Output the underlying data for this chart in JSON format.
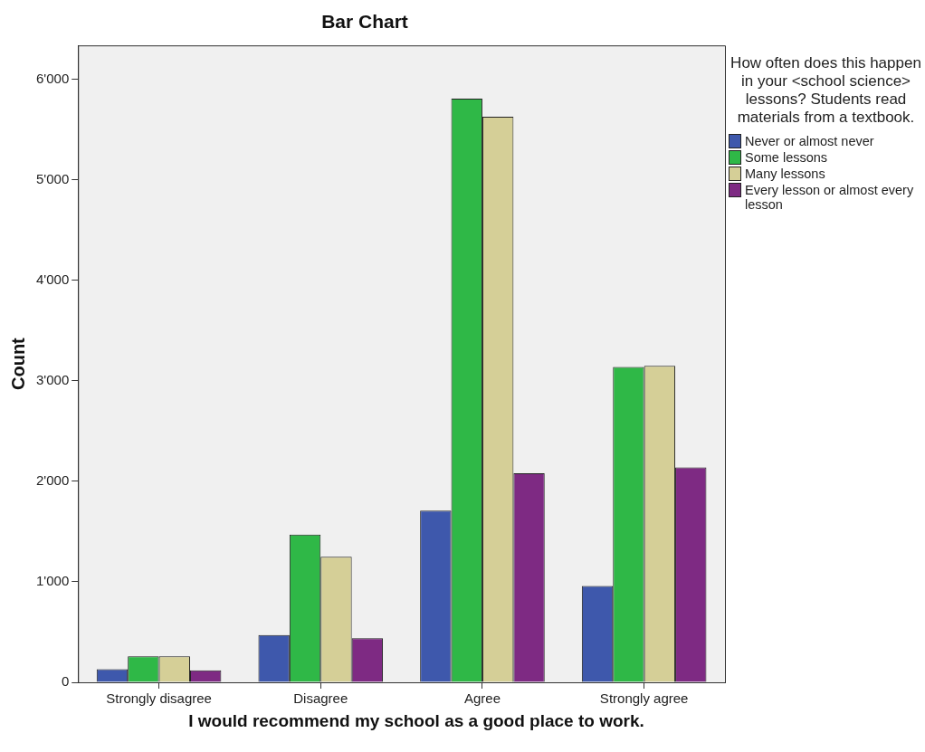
{
  "chart_data": {
    "type": "bar",
    "title": "Bar Chart",
    "xlabel": "I would recommend my school as a good place to work.",
    "ylabel": "Count",
    "legend_title": "How often does this happen in your <school science> lessons? Students read materials from a textbook.",
    "categories": [
      "Strongly disagree",
      "Disagree",
      "Agree",
      "Strongly agree"
    ],
    "series": [
      {
        "name": "Never or almost never",
        "color": "#3e58ac",
        "values": [
          130,
          470,
          1710,
          960
        ]
      },
      {
        "name": "Some lessons",
        "color": "#2fb847",
        "values": [
          260,
          1470,
          5810,
          3140
        ]
      },
      {
        "name": "Many lessons",
        "color": "#d5cf97",
        "values": [
          260,
          1250,
          5630,
          3150
        ]
      },
      {
        "name": "Every lesson or almost every lesson",
        "color": "#7e2a83",
        "values": [
          120,
          440,
          2080,
          2140
        ]
      }
    ],
    "ylim": [
      0,
      6340
    ],
    "yticks": [
      {
        "value": 0,
        "label": "0"
      },
      {
        "value": 1000,
        "label": "1'000"
      },
      {
        "value": 2000,
        "label": "2'000"
      },
      {
        "value": 3000,
        "label": "3'000"
      },
      {
        "value": 4000,
        "label": "4'000"
      },
      {
        "value": 5000,
        "label": "5'000"
      },
      {
        "value": 6000,
        "label": "6'000"
      }
    ],
    "grid": false,
    "legend": "right"
  }
}
